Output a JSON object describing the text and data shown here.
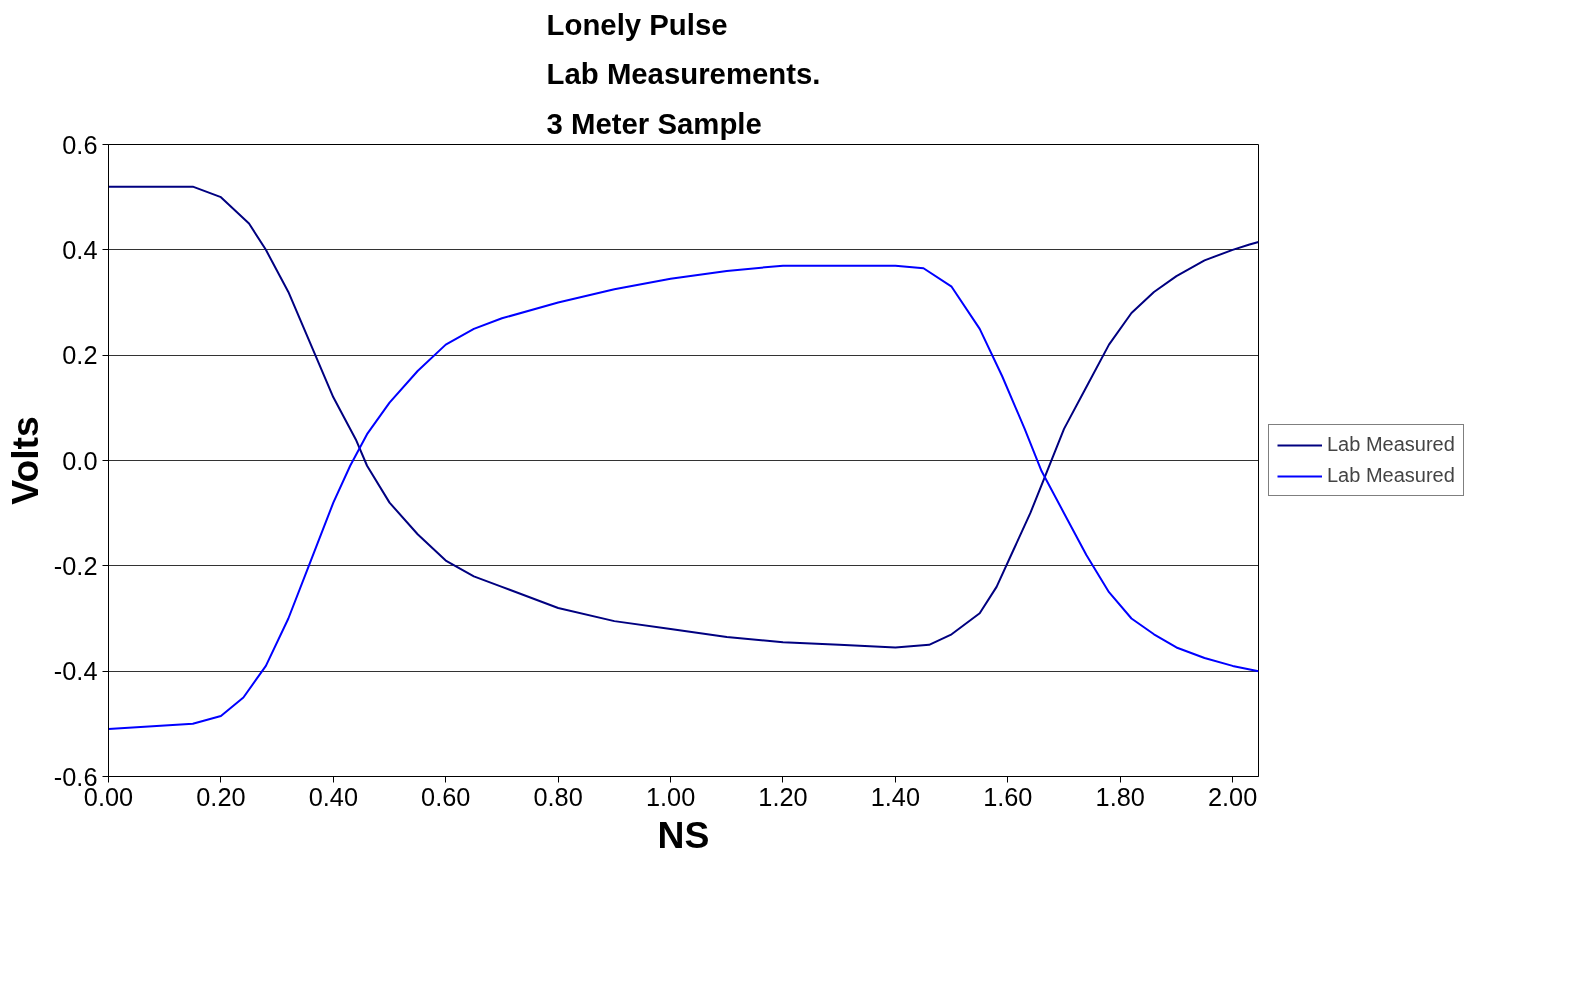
{
  "chart_data": {
    "type": "line",
    "title": "Lonely Pulse\nLab Measurements.\n3 Meter Sample",
    "xlabel": "NS",
    "ylabel": "Volts",
    "xlim": [
      0,
      2.046
    ],
    "ylim": [
      -0.6,
      0.6
    ],
    "xticks": [
      {
        "value": 0,
        "label": "0.00"
      },
      {
        "value": 0.2,
        "label": "0.20"
      },
      {
        "value": 0.4,
        "label": "0.40"
      },
      {
        "value": 0.6,
        "label": "0.60"
      },
      {
        "value": 0.8,
        "label": "0.80"
      },
      {
        "value": 1.0,
        "label": "1.00"
      },
      {
        "value": 1.2,
        "label": "1.20"
      },
      {
        "value": 1.4,
        "label": "1.40"
      },
      {
        "value": 1.6,
        "label": "1.60"
      },
      {
        "value": 1.8,
        "label": "1.80"
      },
      {
        "value": 2.0,
        "label": "2.00"
      }
    ],
    "yticks": [
      {
        "value": -0.6,
        "label": "-0.6"
      },
      {
        "value": -0.4,
        "label": "-0.4"
      },
      {
        "value": -0.2,
        "label": "-0.2"
      },
      {
        "value": 0,
        "label": "0.0"
      },
      {
        "value": 0.2,
        "label": "0.2"
      },
      {
        "value": 0.4,
        "label": "0.4"
      },
      {
        "value": 0.6,
        "label": "0.6"
      }
    ],
    "grid": "y",
    "legend": "right",
    "marker": "none",
    "line_style": "solid",
    "series": [
      {
        "name": "Lab Measured",
        "color": "#000080",
        "x": [
          0,
          0.15,
          0.2,
          0.25,
          0.28,
          0.32,
          0.36,
          0.4,
          0.44,
          0.46,
          0.5,
          0.55,
          0.6,
          0.65,
          0.7,
          0.8,
          0.9,
          1.0,
          1.1,
          1.2,
          1.3,
          1.4,
          1.46,
          1.5,
          1.55,
          1.58,
          1.61,
          1.64,
          1.67,
          1.7,
          1.74,
          1.78,
          1.82,
          1.86,
          1.9,
          1.95,
          2.0,
          2.03,
          2.046
        ],
        "values": [
          0.52,
          0.52,
          0.5,
          0.45,
          0.4,
          0.32,
          0.22,
          0.12,
          0.04,
          -0.01,
          -0.08,
          -0.14,
          -0.19,
          -0.22,
          -0.24,
          -0.28,
          -0.305,
          -0.32,
          -0.335,
          -0.345,
          -0.35,
          -0.355,
          -0.35,
          -0.33,
          -0.29,
          -0.24,
          -0.17,
          -0.1,
          -0.02,
          0.06,
          0.14,
          0.22,
          0.28,
          0.32,
          0.35,
          0.38,
          0.4,
          0.41,
          0.415
        ]
      },
      {
        "name": "Lab Measured",
        "color": "#0000ff",
        "x": [
          0,
          0.15,
          0.2,
          0.24,
          0.28,
          0.32,
          0.36,
          0.4,
          0.43,
          0.46,
          0.5,
          0.55,
          0.6,
          0.65,
          0.7,
          0.8,
          0.9,
          1.0,
          1.1,
          1.2,
          1.3,
          1.4,
          1.45,
          1.5,
          1.55,
          1.59,
          1.63,
          1.66,
          1.7,
          1.74,
          1.78,
          1.82,
          1.86,
          1.9,
          1.95,
          2.0,
          2.046
        ],
        "values": [
          -0.51,
          -0.5,
          -0.485,
          -0.45,
          -0.39,
          -0.3,
          -0.19,
          -0.08,
          -0.01,
          0.05,
          0.11,
          0.17,
          0.22,
          0.25,
          0.27,
          0.3,
          0.325,
          0.345,
          0.36,
          0.37,
          0.37,
          0.37,
          0.365,
          0.33,
          0.25,
          0.16,
          0.06,
          -0.02,
          -0.1,
          -0.18,
          -0.25,
          -0.3,
          -0.33,
          -0.355,
          -0.375,
          -0.39,
          -0.4
        ]
      }
    ]
  }
}
